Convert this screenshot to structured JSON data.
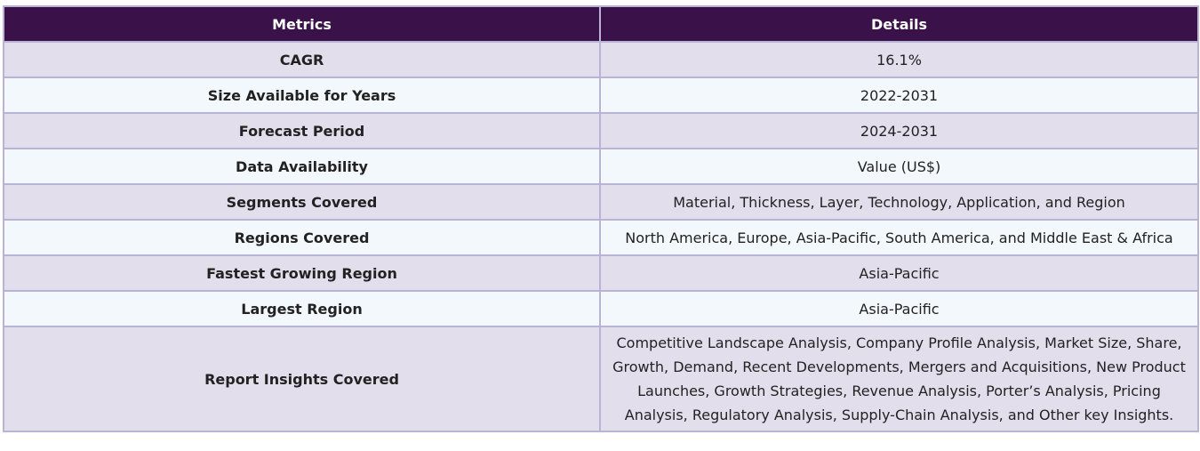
{
  "table": {
    "headers": {
      "metric": "Metrics",
      "detail": "Details"
    },
    "rows": [
      {
        "metric": "CAGR",
        "detail": "16.1%"
      },
      {
        "metric": "Size Available for Years",
        "detail": "2022-2031"
      },
      {
        "metric": "Forecast Period",
        "detail": "2024-2031"
      },
      {
        "metric": "Data Availability",
        "detail": "Value (US$)"
      },
      {
        "metric": "Segments Covered",
        "detail": "Material, Thickness, Layer, Technology, Application, and Region"
      },
      {
        "metric": "Regions Covered",
        "detail": "North America, Europe, Asia-Pacific, South America, and Middle East & Africa"
      },
      {
        "metric": "Fastest Growing Region",
        "detail": "Asia-Pacific"
      },
      {
        "metric": "Largest Region",
        "detail": "Asia-Pacific"
      },
      {
        "metric": "Report Insights Covered",
        "detail": "Competitive Landscape Analysis, Company Profile Analysis, Market Size, Share, Growth, Demand, Recent Developments, Mergers and Acquisitions, New Product Launches, Growth Strategies, Revenue Analysis, Porter’s Analysis, Pricing Analysis, Regulatory Analysis, Supply-Chain Analysis, and Other key Insights."
      }
    ]
  },
  "colors": {
    "header_bg": "#3b114a",
    "row_odd_bg": "#e2deec",
    "row_even_bg": "#f2f8fc",
    "border": "#b9b4d6"
  }
}
